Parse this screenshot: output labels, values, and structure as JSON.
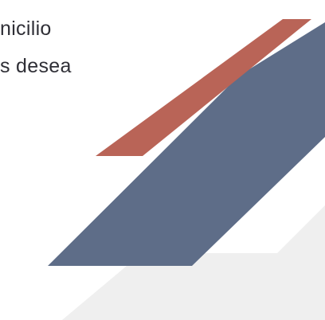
{
  "text": {
    "line1": "nicilio",
    "line2": "s desea"
  },
  "colors": {
    "background": "#ffffff",
    "text": "#2f2f36",
    "red_stripe": "#b96457",
    "blue_stripe": "#5e6d88",
    "gray_stripe": "#efefef"
  }
}
